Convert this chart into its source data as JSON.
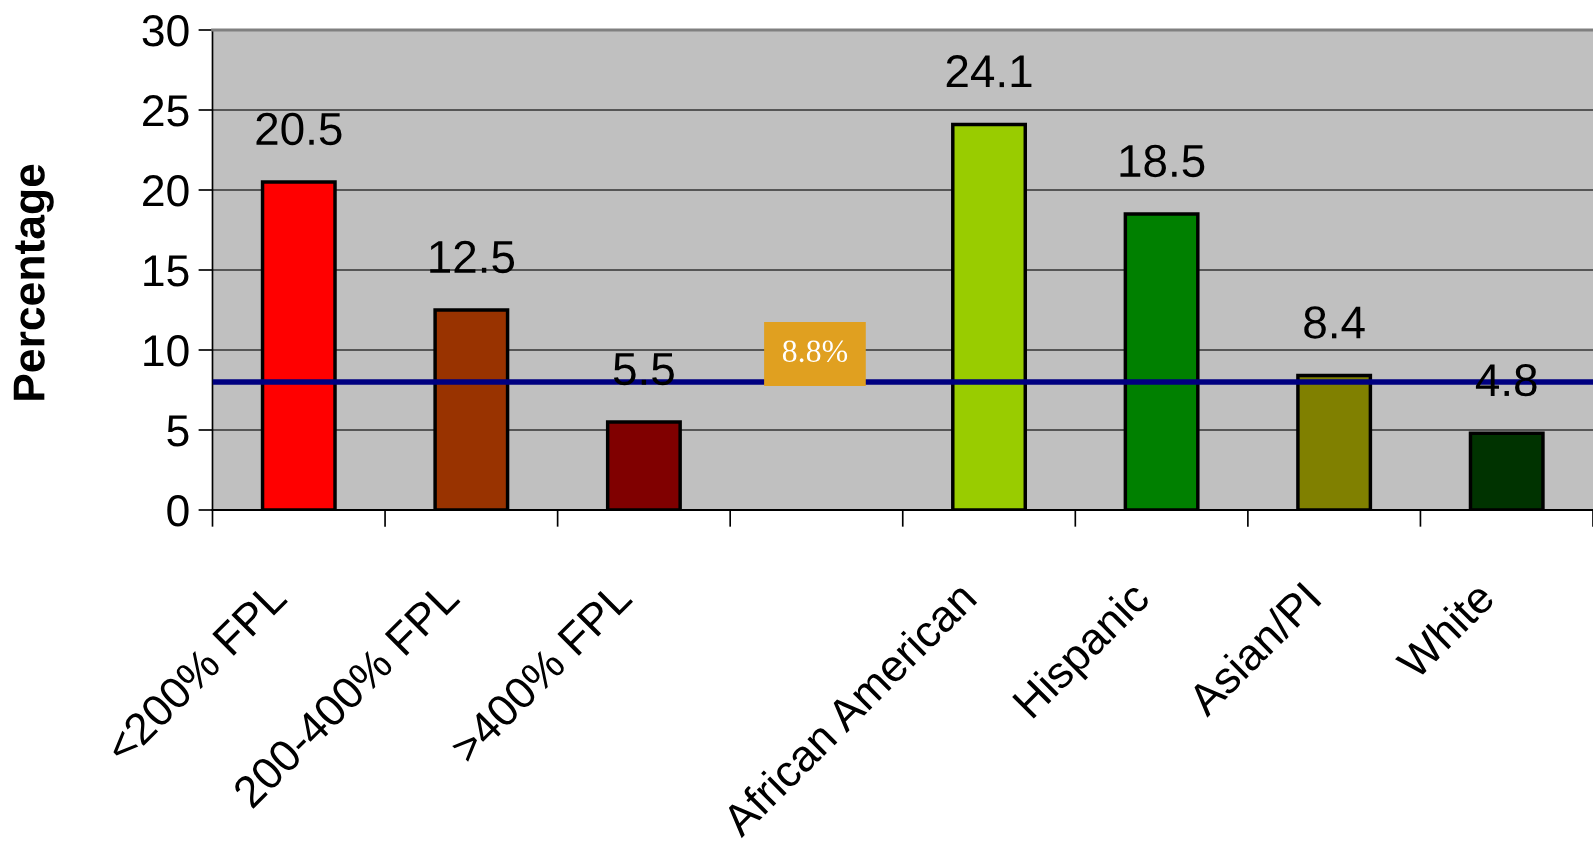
{
  "chart_data": {
    "type": "bar",
    "ylabel": "Percentage",
    "categories": [
      "<200% FPL",
      "200-400% FPL",
      ">400% FPL",
      null,
      "African American",
      "Hispanic",
      "Asian/PI",
      "White"
    ],
    "values": [
      20.5,
      12.5,
      5.5,
      null,
      24.1,
      18.5,
      8.4,
      4.8
    ],
    "colors": [
      "#ff0000",
      "#993300",
      "#800000",
      null,
      "#99cc00",
      "#008000",
      "#808000",
      "#003300"
    ],
    "ylim": [
      0,
      30
    ],
    "yticks": [
      0,
      5,
      10,
      15,
      20,
      25,
      30
    ],
    "grid": "y",
    "data_labels": true,
    "legend": false,
    "ref_lines": [
      {
        "axis": "y",
        "value": 8.0,
        "color": "#000080"
      }
    ],
    "annotations": [
      "8.8%"
    ]
  }
}
